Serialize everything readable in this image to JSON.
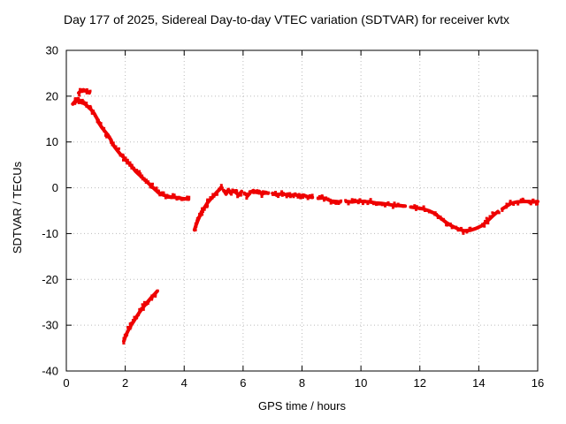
{
  "chart_data": {
    "type": "scatter",
    "title": "Day 177 of 2025, Sidereal Day-to-day VTEC variation (SDTVAR) for receiver kvtx",
    "xlabel": "GPS time / hours",
    "ylabel": "SDTVAR / TECUs",
    "xlim": [
      0,
      16
    ],
    "ylim": [
      -40,
      30
    ],
    "xticks": [
      0,
      2,
      4,
      6,
      8,
      10,
      12,
      14,
      16
    ],
    "yticks": [
      -40,
      -30,
      -20,
      -10,
      0,
      10,
      20,
      30
    ],
    "grid": true,
    "grid_color": "#bbbbbb",
    "marker_color": "#ee0000",
    "legend": "none",
    "series": [
      {
        "name": "start-cluster-lower",
        "points": [
          [
            0.22,
            18.3
          ],
          [
            0.3,
            18.9
          ],
          [
            0.38,
            19.4
          ],
          [
            0.46,
            19.0
          ],
          [
            0.52,
            18.6
          ]
        ]
      },
      {
        "name": "start-cluster-upper",
        "points": [
          [
            0.42,
            20.7
          ],
          [
            0.5,
            21.2
          ],
          [
            0.58,
            21.4
          ],
          [
            0.68,
            21.1
          ],
          [
            0.78,
            20.7
          ]
        ]
      },
      {
        "name": "morning-descent",
        "points": [
          [
            0.55,
            18.6
          ],
          [
            0.65,
            18.2
          ],
          [
            0.75,
            17.6
          ],
          [
            0.85,
            17.0
          ],
          [
            0.95,
            16.2
          ],
          [
            1.05,
            15.0
          ],
          [
            1.1,
            14.2
          ],
          [
            1.2,
            13.2
          ],
          [
            1.3,
            12.4
          ],
          [
            1.4,
            11.6
          ],
          [
            1.5,
            10.6
          ],
          [
            1.55,
            9.8
          ],
          [
            1.65,
            8.8
          ],
          [
            1.75,
            8.0
          ],
          [
            1.85,
            7.2
          ],
          [
            1.95,
            6.6
          ],
          [
            2.05,
            5.8
          ],
          [
            2.15,
            5.2
          ],
          [
            2.25,
            4.4
          ],
          [
            2.35,
            3.6
          ],
          [
            2.45,
            3.0
          ],
          [
            2.55,
            2.4
          ],
          [
            2.65,
            1.8
          ],
          [
            2.75,
            1.2
          ],
          [
            2.85,
            0.6
          ],
          [
            2.95,
            0.0
          ],
          [
            3.05,
            -0.6
          ],
          [
            3.15,
            -1.2
          ],
          [
            3.25,
            -1.5
          ],
          [
            3.4,
            -1.8
          ],
          [
            3.55,
            -2.0
          ],
          [
            3.7,
            -2.1
          ],
          [
            3.85,
            -2.3
          ],
          [
            4.0,
            -2.4
          ],
          [
            4.15,
            -2.5
          ]
        ]
      },
      {
        "name": "rise-arc",
        "points": [
          [
            4.35,
            -9.2
          ],
          [
            4.4,
            -8.2
          ],
          [
            4.45,
            -7.4
          ],
          [
            4.5,
            -6.6
          ],
          [
            4.55,
            -5.8
          ],
          [
            4.62,
            -5.0
          ],
          [
            4.7,
            -4.2
          ],
          [
            4.78,
            -3.4
          ],
          [
            4.88,
            -2.6
          ],
          [
            5.0,
            -1.8
          ],
          [
            5.1,
            -1.0
          ],
          [
            5.2,
            -0.4
          ],
          [
            5.28,
            0.0
          ]
        ]
      },
      {
        "name": "mid-1",
        "points": [
          [
            5.35,
            -0.6
          ],
          [
            5.42,
            -1.4
          ],
          [
            5.5,
            -0.4
          ],
          [
            5.58,
            -1.2
          ],
          [
            5.66,
            -0.6
          ],
          [
            5.75,
            -1.0
          ],
          [
            5.85,
            -1.6
          ],
          [
            5.95,
            -0.8
          ]
        ]
      },
      {
        "name": "mid-2",
        "points": [
          [
            6.05,
            -1.2
          ],
          [
            6.15,
            -1.8
          ],
          [
            6.25,
            -1.0
          ],
          [
            6.35,
            -0.6
          ],
          [
            6.45,
            -1.0
          ],
          [
            6.55,
            -0.8
          ],
          [
            6.65,
            -1.4
          ],
          [
            6.75,
            -1.0
          ],
          [
            6.85,
            -1.2
          ]
        ]
      },
      {
        "name": "mid-3",
        "points": [
          [
            7.0,
            -1.2
          ],
          [
            7.15,
            -1.6
          ],
          [
            7.3,
            -1.3
          ],
          [
            7.45,
            -1.5
          ],
          [
            7.6,
            -1.7
          ],
          [
            7.75,
            -1.5
          ],
          [
            7.9,
            -1.8
          ],
          [
            8.05,
            -1.6
          ],
          [
            8.2,
            -2.0
          ],
          [
            8.35,
            -2.1
          ]
        ]
      },
      {
        "name": "mid-4",
        "points": [
          [
            8.55,
            -2.3
          ],
          [
            8.7,
            -2.2
          ],
          [
            8.85,
            -2.5
          ],
          [
            9.0,
            -2.9
          ],
          [
            9.15,
            -3.0
          ],
          [
            9.3,
            -3.1
          ]
        ]
      },
      {
        "name": "mid-5",
        "points": [
          [
            9.5,
            -3.0
          ],
          [
            9.7,
            -3.1
          ],
          [
            9.9,
            -2.9
          ],
          [
            10.1,
            -3.0
          ],
          [
            10.3,
            -3.1
          ],
          [
            10.5,
            -3.3
          ],
          [
            10.7,
            -3.4
          ],
          [
            10.9,
            -3.6
          ],
          [
            11.1,
            -3.8
          ],
          [
            11.3,
            -3.9
          ],
          [
            11.5,
            -4.0
          ]
        ]
      },
      {
        "name": "evening-dip",
        "points": [
          [
            11.7,
            -4.2
          ],
          [
            11.9,
            -4.4
          ],
          [
            12.1,
            -4.6
          ],
          [
            12.3,
            -5.0
          ],
          [
            12.5,
            -5.6
          ],
          [
            12.7,
            -6.6
          ],
          [
            12.9,
            -7.6
          ],
          [
            13.1,
            -8.4
          ],
          [
            13.3,
            -9.0
          ],
          [
            13.5,
            -9.4
          ],
          [
            13.7,
            -9.3
          ],
          [
            13.9,
            -8.9
          ],
          [
            14.1,
            -8.3
          ],
          [
            14.3,
            -7.2
          ],
          [
            14.5,
            -6.0
          ],
          [
            14.65,
            -5.2
          ]
        ]
      },
      {
        "name": "end-recovery",
        "points": [
          [
            14.8,
            -4.6
          ],
          [
            14.95,
            -4.0
          ],
          [
            15.1,
            -3.4
          ],
          [
            15.3,
            -3.1
          ],
          [
            15.5,
            -3.0
          ],
          [
            15.7,
            -3.0
          ],
          [
            15.85,
            -3.1
          ],
          [
            16.0,
            -3.0
          ]
        ]
      },
      {
        "name": "lower-arc",
        "points": [
          [
            1.95,
            -33.5
          ],
          [
            2.0,
            -32.6
          ],
          [
            2.05,
            -31.8
          ],
          [
            2.12,
            -30.9
          ],
          [
            2.2,
            -30.0
          ],
          [
            2.3,
            -29.0
          ],
          [
            2.4,
            -28.0
          ],
          [
            2.5,
            -27.0
          ],
          [
            2.62,
            -26.0
          ],
          [
            2.75,
            -25.0
          ],
          [
            2.88,
            -24.0
          ],
          [
            3.0,
            -23.2
          ],
          [
            3.08,
            -22.6
          ]
        ]
      }
    ]
  }
}
